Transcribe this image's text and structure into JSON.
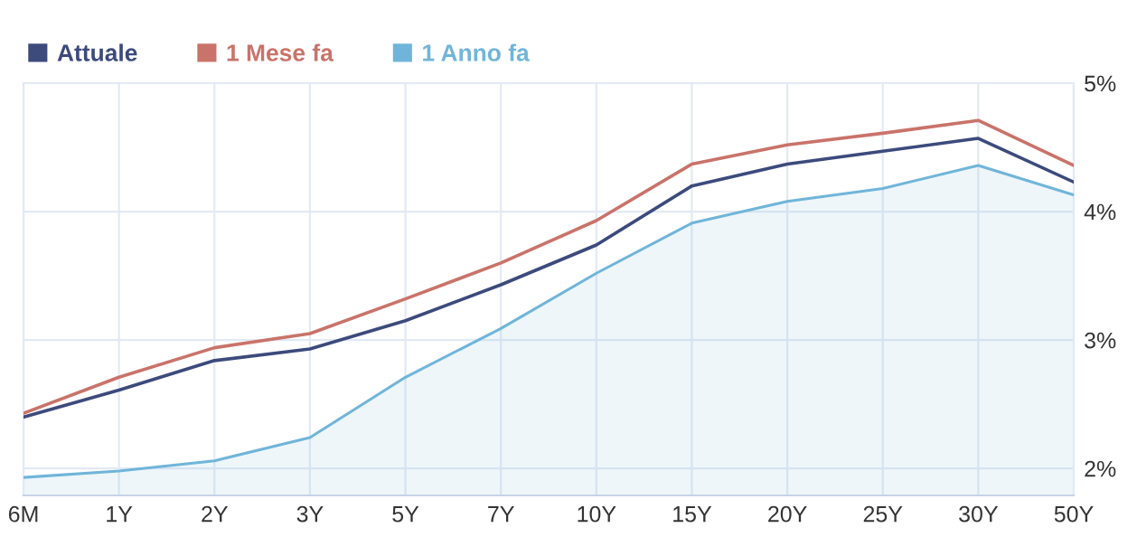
{
  "chart_data": {
    "type": "line",
    "categories": [
      "6M",
      "1Y",
      "2Y",
      "3Y",
      "5Y",
      "7Y",
      "10Y",
      "15Y",
      "20Y",
      "25Y",
      "30Y",
      "50Y"
    ],
    "series": [
      {
        "name": "Attuale",
        "color": "#3c4a7c",
        "values": [
          2.4,
          2.61,
          2.84,
          2.93,
          3.15,
          3.43,
          3.74,
          4.2,
          4.37,
          4.47,
          4.57,
          4.23
        ]
      },
      {
        "name": "1 Mese fa",
        "color": "#c9736a",
        "values": [
          2.43,
          2.71,
          2.94,
          3.05,
          3.32,
          3.6,
          3.93,
          4.37,
          4.52,
          4.61,
          4.71,
          4.36
        ]
      },
      {
        "name": "1 Anno fa",
        "color": "#70b5d9",
        "type": "area",
        "values": [
          1.93,
          1.98,
          2.06,
          2.24,
          2.71,
          3.09,
          3.52,
          3.91,
          4.08,
          4.18,
          4.36,
          4.13
        ]
      }
    ],
    "ylim": [
      1.79,
      5.0
    ],
    "yticks": [
      {
        "value": 2,
        "label": "2%"
      },
      {
        "value": 3,
        "label": "3%"
      },
      {
        "value": 4,
        "label": "4%"
      },
      {
        "value": 5,
        "label": "5%"
      }
    ],
    "grid": true,
    "legend": "top left"
  }
}
